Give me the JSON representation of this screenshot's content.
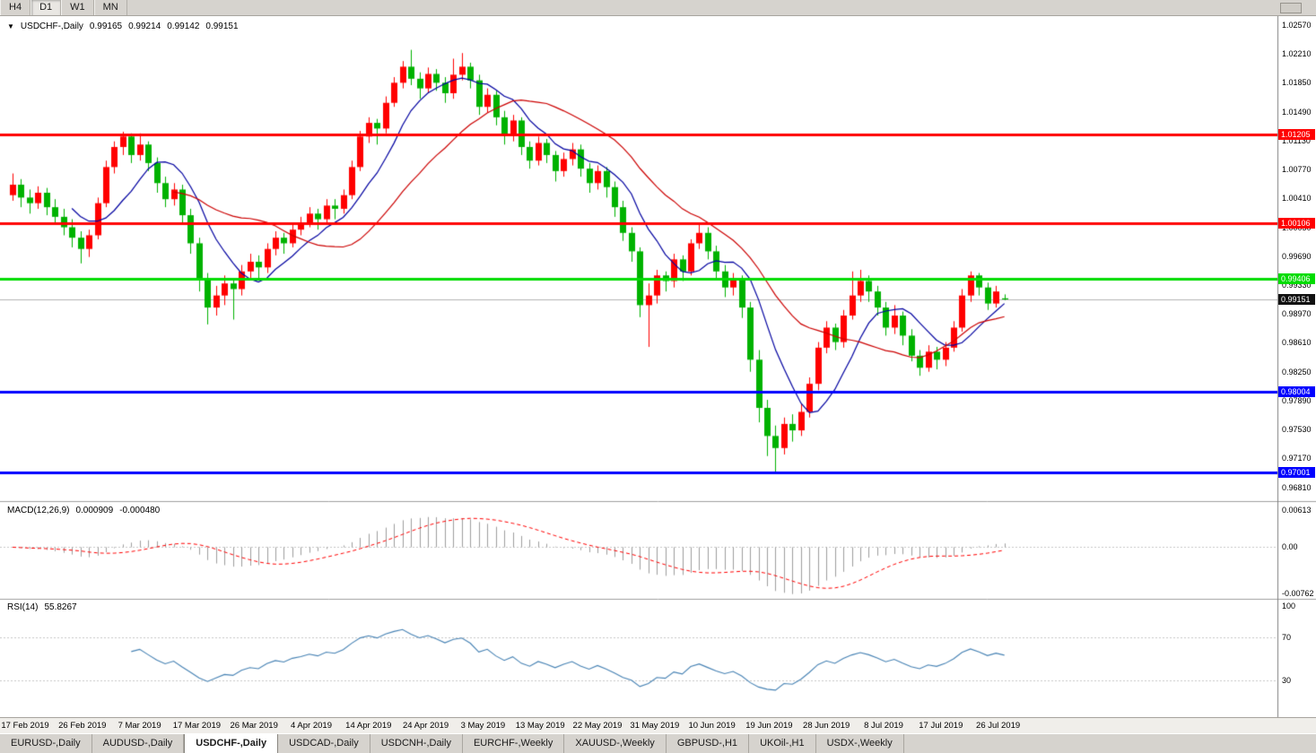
{
  "toolbar": {
    "timeframes": [
      {
        "label": "H4",
        "active": false
      },
      {
        "label": "D1",
        "active": true
      },
      {
        "label": "W1",
        "active": false
      },
      {
        "label": "MN",
        "active": false
      }
    ]
  },
  "header": {
    "collapse_icon": "▼",
    "title": "USDCHF-,Daily",
    "ohlc": [
      "0.99165",
      "0.99214",
      "0.99142",
      "0.99151"
    ]
  },
  "macd": {
    "label": "MACD(12,26,9)",
    "values": [
      "0.000909",
      "-0.000480"
    ],
    "axis": [
      "0.00613",
      "0.00",
      "-0.00762"
    ],
    "axis_values": [
      0.00613,
      0,
      -0.00762
    ]
  },
  "rsi": {
    "label": "RSI(14)",
    "value": "55.8267",
    "axis": [
      "100",
      "70",
      "30"
    ],
    "guide_levels": [
      70,
      30
    ]
  },
  "tabs": {
    "items": [
      {
        "label": "EURUSD-,Daily",
        "active": false
      },
      {
        "label": "AUDUSD-,Daily",
        "active": false
      },
      {
        "label": "USDCHF-,Daily",
        "active": true
      },
      {
        "label": "USDCAD-,Daily",
        "active": false
      },
      {
        "label": "USDCNH-,Daily",
        "active": false
      },
      {
        "label": "EURCHF-,Weekly",
        "active": false
      },
      {
        "label": "XAUUSD-,Weekly",
        "active": false
      },
      {
        "label": "GBPUSD-,H1",
        "active": false
      },
      {
        "label": "UKOil-,H1",
        "active": false
      },
      {
        "label": "USDX-,Weekly",
        "active": false
      }
    ]
  },
  "colors": {
    "bull": "#FF0000",
    "bear": "#00B200",
    "ma_fast": "#0000A0",
    "ma_slow": "#CC0000",
    "macd_hist": "#9E9E9E",
    "macd_signal": "#FF0000",
    "rsi_line": "#4682B4",
    "current_line": "#B4B4B4",
    "axis_line": "#7F7F7F",
    "separator": "#A0A0A0",
    "grid_dotted": "#C8C8C8",
    "panel_bg": "#FFFFFF"
  },
  "chart_data": {
    "type": "candlestick",
    "symbol": "USDCHF-",
    "timeframe": "Daily",
    "title": "USDCHF-,Daily",
    "bull_convention": "red-up-green-down",
    "current": {
      "open": 0.99165,
      "high": 0.99214,
      "low": 0.99142,
      "close": 0.99151
    },
    "current_price": {
      "label": "0.99151",
      "value": 0.99151,
      "badge_color": "#111111"
    },
    "y_axis": {
      "price_top": 1.0268,
      "price_bottom": 0.9665,
      "ticks": [
        "1.02570",
        "1.02210",
        "1.01850",
        "1.01490",
        "1.01130",
        "1.00770",
        "1.00410",
        "1.00050",
        "0.99690",
        "0.99330",
        "0.98970",
        "0.98610",
        "0.98250",
        "0.97890",
        "0.97530",
        "0.97170",
        "0.96810"
      ]
    },
    "x_axis": {
      "ticks": [
        "17 Feb 2019",
        "26 Feb 2019",
        "7 Mar 2019",
        "17 Mar 2019",
        "26 Mar 2019",
        "4 Apr 2019",
        "14 Apr 2019",
        "24 Apr 2019",
        "3 May 2019",
        "13 May 2019",
        "22 May 2019",
        "31 May 2019",
        "10 Jun 2019",
        "19 Jun 2019",
        "28 Jun 2019",
        "8 Jul 2019",
        "17 Jul 2019",
        "26 Jul 2019"
      ]
    },
    "levels": [
      {
        "label": "1.01205",
        "value": 1.01205,
        "color": "#FF0000",
        "width": 3
      },
      {
        "label": "1.00106",
        "value": 1.00106,
        "color": "#FF0000",
        "width": 3
      },
      {
        "label": "0.99406",
        "value": 0.99406,
        "color": "#00DC00",
        "width": 3
      },
      {
        "label": "0.98004",
        "value": 0.98004,
        "color": "#0000FF",
        "width": 3
      },
      {
        "label": "0.97001",
        "value": 0.97001,
        "color": "#0000FF",
        "width": 3
      }
    ],
    "indicators": {
      "ma_fast_period": 8,
      "ma_slow_period": 20,
      "macd": {
        "fast": 12,
        "slow": 26,
        "signal": 9
      },
      "rsi_period": 14
    },
    "ohlc": [
      [
        1.0045,
        1.0072,
        1.0038,
        1.0058
      ],
      [
        1.0058,
        1.0065,
        1.003,
        1.0042
      ],
      [
        1.0042,
        1.0052,
        1.0022,
        1.0035
      ],
      [
        1.0035,
        1.0056,
        1.0028,
        1.0048
      ],
      [
        1.0048,
        1.0054,
        1.002,
        1.003
      ],
      [
        1.003,
        1.004,
        1.0008,
        1.0018
      ],
      [
        1.0018,
        1.0028,
        0.9995,
        1.0005
      ],
      [
        1.0005,
        1.0015,
        0.998,
        0.9992
      ],
      [
        0.9992,
        1.0,
        0.996,
        0.9978
      ],
      [
        0.9978,
        1.0002,
        0.9968,
        0.9995
      ],
      [
        0.9995,
        1.0042,
        0.999,
        1.0035
      ],
      [
        1.0035,
        1.0088,
        1.003,
        1.008
      ],
      [
        1.008,
        1.0112,
        1.0072,
        1.0105
      ],
      [
        1.0105,
        1.0124,
        1.0095,
        1.0118
      ],
      [
        1.0118,
        1.0122,
        1.0085,
        1.0095
      ],
      [
        1.0095,
        1.0122,
        1.0088,
        1.0108
      ],
      [
        1.0108,
        1.0112,
        1.0075,
        1.0085
      ],
      [
        1.0085,
        1.0092,
        1.0048,
        1.006
      ],
      [
        1.006,
        1.0068,
        1.003,
        1.004
      ],
      [
        1.004,
        1.006,
        1.0032,
        1.0052
      ],
      [
        1.0052,
        1.0058,
        1.001,
        1.002
      ],
      [
        1.002,
        1.0028,
        0.9972,
        0.9985
      ],
      [
        0.9985,
        0.9992,
        0.9925,
        0.994
      ],
      [
        0.994,
        0.9948,
        0.9884,
        0.9905
      ],
      [
        0.9905,
        0.9932,
        0.9895,
        0.992
      ],
      [
        0.992,
        0.9945,
        0.9908,
        0.9935
      ],
      [
        0.9935,
        0.994,
        0.989,
        0.9928
      ],
      [
        0.9928,
        0.9958,
        0.992,
        0.995
      ],
      [
        0.995,
        0.9972,
        0.9942,
        0.9962
      ],
      [
        0.9962,
        0.997,
        0.994,
        0.9955
      ],
      [
        0.9955,
        0.9985,
        0.9948,
        0.9978
      ],
      [
        0.9978,
        1.0,
        0.997,
        0.9992
      ],
      [
        0.9992,
        0.9998,
        0.9972,
        0.9985
      ],
      [
        0.9985,
        1.001,
        0.998,
        1.0002
      ],
      [
        1.0002,
        1.0018,
        0.9995,
        1.001
      ],
      [
        1.001,
        1.003,
        1.0005,
        1.0022
      ],
      [
        1.0022,
        1.0028,
        1.0002,
        1.0015
      ],
      [
        1.0015,
        1.004,
        1.001,
        1.0032
      ],
      [
        1.0032,
        1.004,
        1.0015,
        1.0028
      ],
      [
        1.0028,
        1.0052,
        1.0022,
        1.0045
      ],
      [
        1.0045,
        1.0088,
        1.004,
        1.008
      ],
      [
        1.008,
        1.0125,
        1.0075,
        1.0118
      ],
      [
        1.0118,
        1.0142,
        1.011,
        1.0135
      ],
      [
        1.0135,
        1.014,
        1.0108,
        1.0128
      ],
      [
        1.0128,
        1.0168,
        1.0122,
        1.016
      ],
      [
        1.016,
        1.0192,
        1.0155,
        1.0185
      ],
      [
        1.0185,
        1.0212,
        1.0178,
        1.0205
      ],
      [
        1.0205,
        1.0226,
        1.0182,
        1.019
      ],
      [
        1.019,
        1.0198,
        1.0165,
        1.0178
      ],
      [
        1.0178,
        1.0204,
        1.0172,
        1.0196
      ],
      [
        1.0196,
        1.0202,
        1.0175,
        1.0185
      ],
      [
        1.0185,
        1.0192,
        1.016,
        1.0172
      ],
      [
        1.0172,
        1.0215,
        1.0165,
        1.0195
      ],
      [
        1.0195,
        1.0222,
        1.0188,
        1.0205
      ],
      [
        1.0205,
        1.021,
        1.0178,
        1.0188
      ],
      [
        1.0188,
        1.0195,
        1.0145,
        1.0155
      ],
      [
        1.0155,
        1.0178,
        1.0148,
        1.017
      ],
      [
        1.017,
        1.0175,
        1.0132,
        1.0142
      ],
      [
        1.0142,
        1.015,
        1.0108,
        1.012
      ],
      [
        1.012,
        1.0145,
        1.0112,
        1.0138
      ],
      [
        1.0138,
        1.0142,
        1.0095,
        1.0105
      ],
      [
        1.0105,
        1.0112,
        1.0078,
        1.0088
      ],
      [
        1.0088,
        1.0118,
        1.0082,
        1.011
      ],
      [
        1.011,
        1.0115,
        1.0085,
        1.0095
      ],
      [
        1.0095,
        1.01,
        1.0062,
        1.0075
      ],
      [
        1.0075,
        1.0098,
        1.0068,
        1.009
      ],
      [
        1.009,
        1.011,
        1.0082,
        1.0102
      ],
      [
        1.0102,
        1.0108,
        1.0068,
        1.0078
      ],
      [
        1.0078,
        1.0085,
        1.0048,
        1.006
      ],
      [
        1.006,
        1.0082,
        1.0052,
        1.0075
      ],
      [
        1.0075,
        1.008,
        1.0042,
        1.0055
      ],
      [
        1.0055,
        1.0062,
        1.0018,
        1.003
      ],
      [
        1.003,
        1.0038,
        0.9988,
        0.9998
      ],
      [
        0.9998,
        1.0005,
        0.9962,
        0.9975
      ],
      [
        0.9975,
        0.998,
        0.9893,
        0.9908
      ],
      [
        0.9908,
        0.9935,
        0.9856,
        0.992
      ],
      [
        0.992,
        0.9952,
        0.991,
        0.9945
      ],
      [
        0.9945,
        0.995,
        0.9925,
        0.9938
      ],
      [
        0.9938,
        0.9972,
        0.993,
        0.9965
      ],
      [
        0.9965,
        0.997,
        0.9938,
        0.995
      ],
      [
        0.995,
        0.999,
        0.9945,
        0.9985
      ],
      [
        0.9985,
        1.0008,
        0.9978,
        0.9998
      ],
      [
        0.9998,
        1.0005,
        0.9965,
        0.9975
      ],
      [
        0.9975,
        0.9982,
        0.994,
        0.995
      ],
      [
        0.995,
        0.9958,
        0.9918,
        0.993
      ],
      [
        0.993,
        0.9948,
        0.992,
        0.994
      ],
      [
        0.994,
        0.9945,
        0.9892,
        0.9905
      ],
      [
        0.9905,
        0.9912,
        0.9825,
        0.984
      ],
      [
        0.984,
        0.9852,
        0.9762,
        0.978
      ],
      [
        0.978,
        0.979,
        0.972,
        0.9745
      ],
      [
        0.9745,
        0.9758,
        0.9698,
        0.973
      ],
      [
        0.973,
        0.9768,
        0.9722,
        0.976
      ],
      [
        0.976,
        0.9772,
        0.9738,
        0.9752
      ],
      [
        0.9752,
        0.9785,
        0.9745,
        0.9775
      ],
      [
        0.9775,
        0.9818,
        0.9768,
        0.981
      ],
      [
        0.981,
        0.9862,
        0.9802,
        0.9855
      ],
      [
        0.9855,
        0.9888,
        0.9848,
        0.988
      ],
      [
        0.988,
        0.9885,
        0.9852,
        0.9862
      ],
      [
        0.9862,
        0.9902,
        0.9855,
        0.9895
      ],
      [
        0.9895,
        0.995,
        0.989,
        0.992
      ],
      [
        0.992,
        0.9952,
        0.9912,
        0.9938
      ],
      [
        0.9938,
        0.9945,
        0.9912,
        0.9925
      ],
      [
        0.9925,
        0.9932,
        0.9895,
        0.9905
      ],
      [
        0.9905,
        0.9912,
        0.987,
        0.988
      ],
      [
        0.988,
        0.9908,
        0.9872,
        0.9895
      ],
      [
        0.9895,
        0.99,
        0.9858,
        0.987
      ],
      [
        0.987,
        0.9878,
        0.9838,
        0.9845
      ],
      [
        0.9845,
        0.9852,
        0.982,
        0.983
      ],
      [
        0.983,
        0.9858,
        0.9825,
        0.985
      ],
      [
        0.985,
        0.9856,
        0.9828,
        0.984
      ],
      [
        0.984,
        0.9862,
        0.9832,
        0.9855
      ],
      [
        0.9855,
        0.9888,
        0.985,
        0.988
      ],
      [
        0.988,
        0.9928,
        0.9875,
        0.992
      ],
      [
        0.992,
        0.995,
        0.9912,
        0.9945
      ],
      [
        0.9945,
        0.9948,
        0.992,
        0.993
      ],
      [
        0.993,
        0.9936,
        0.9902,
        0.991
      ],
      [
        0.991,
        0.9932,
        0.9905,
        0.9925
      ],
      [
        0.99165,
        0.99214,
        0.99142,
        0.99151
      ]
    ]
  }
}
